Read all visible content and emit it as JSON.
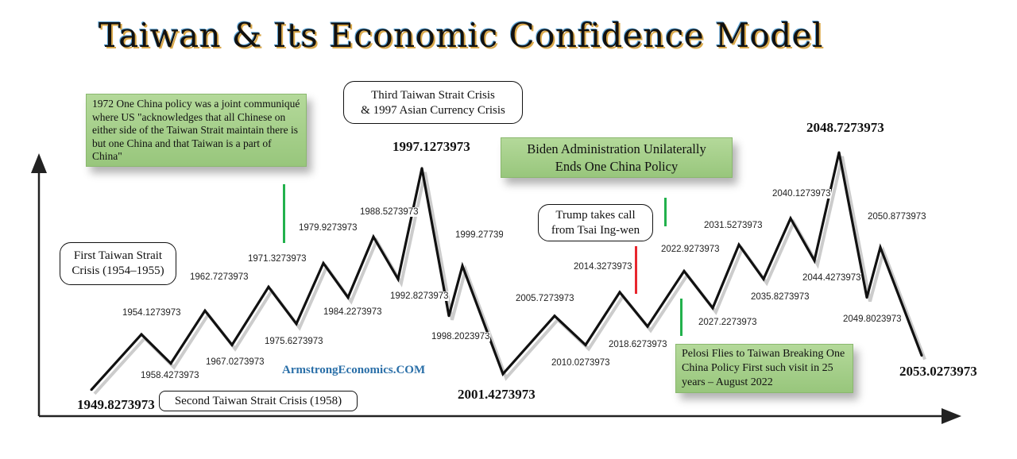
{
  "chart_data": {
    "type": "line",
    "title": "Taiwan & Its Economic Confidence Model",
    "xlabel": "",
    "ylabel": "",
    "points": [
      {
        "label": "1949.8273973",
        "level": 10
      },
      {
        "label": "1954.1273973",
        "level": 31
      },
      {
        "label": "1958.4273973",
        "level": 20
      },
      {
        "label": "1962.7273973",
        "level": 40
      },
      {
        "label": "1967.0273973",
        "level": 27
      },
      {
        "label": "1971.3273973",
        "level": 49
      },
      {
        "label": "1975.6273973",
        "level": 35
      },
      {
        "label": "1979.9273973",
        "level": 58
      },
      {
        "label": "1984.2273973",
        "level": 45
      },
      {
        "label": "1988.5273973",
        "level": 68
      },
      {
        "label": "1992.8273973",
        "level": 52
      },
      {
        "label": "1997.1273973",
        "level": 94
      },
      {
        "label": "1998.2023973",
        "level": 38
      },
      {
        "label": "1999.277397",
        "level": 57
      },
      {
        "label": "2001.4273973",
        "level": 16
      },
      {
        "label": "2005.7273973",
        "level": 38
      },
      {
        "label": "2010.0273973",
        "level": 27
      },
      {
        "label": "2014.3273973",
        "level": 47
      },
      {
        "label": "2018.6273973",
        "level": 34
      },
      {
        "label": "2022.9273973",
        "level": 55
      },
      {
        "label": "2027.2273973",
        "level": 41
      },
      {
        "label": "2031.5273973",
        "level": 65
      },
      {
        "label": "2035.8273973",
        "level": 52
      },
      {
        "label": "2040.1273973",
        "level": 75
      },
      {
        "label": "2044.4273973",
        "level": 59
      },
      {
        "label": "2048.7273973",
        "level": 100
      },
      {
        "label": "2049.8023973",
        "level": 45
      },
      {
        "label": "2050.8773973",
        "level": 64
      },
      {
        "label": "2053.0273973",
        "level": 23
      }
    ],
    "annotations": {
      "one_china_1972": "1972 One China policy was a joint communiqué where US \"acknowledges that all Chinese on either side of the Taiwan Strait maintain there is but one China and that Taiwan is a part of China\"",
      "third_crisis_1": "Third Taiwan Strait Crisis",
      "third_crisis_2": "& 1997 Asian Currency Crisis",
      "biden_1": "Biden Administration Unilaterally",
      "biden_2": "Ends One China Policy",
      "first_crisis_1": "First Taiwan Strait",
      "first_crisis_2": "Crisis (1954–1955)",
      "second_crisis": "Second Taiwan Strait Crisis (1958)",
      "trump_1": "Trump takes call",
      "trump_2": "from Tsai Ing-wen",
      "pelosi": "Pelosi Flies to Taiwan Breaking One China Policy First such visit in 25 years – August 2022"
    },
    "watermark": "ArmstrongEconomics.COM",
    "colors": {
      "line": "#111111",
      "green_marker": "#22b14c",
      "red_marker": "#e8262e",
      "watermark": "#2a6fa8"
    }
  }
}
